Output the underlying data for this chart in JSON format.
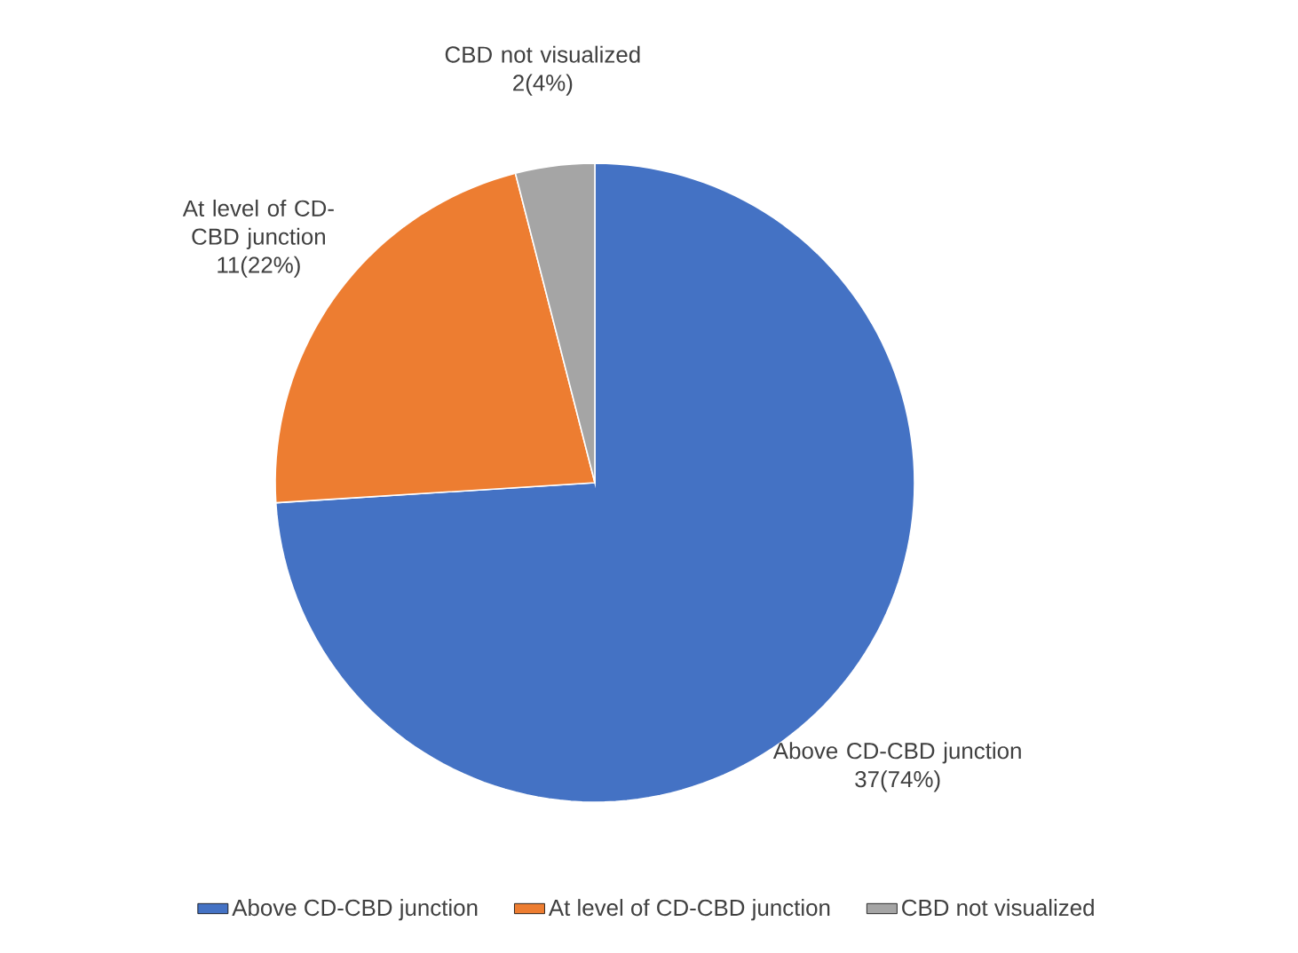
{
  "chart_data": {
    "type": "pie",
    "categories": [
      "Above CD-CBD junction",
      "At level of CD-CBD junction",
      "CBD not visualized"
    ],
    "values": [
      37,
      11,
      2
    ],
    "colors": [
      "#4472c4",
      "#ed7d31",
      "#a5a5a5"
    ],
    "value_labels": [
      "37(74%)",
      "11(22%)",
      "2(4%)"
    ],
    "legend": "bottom"
  }
}
